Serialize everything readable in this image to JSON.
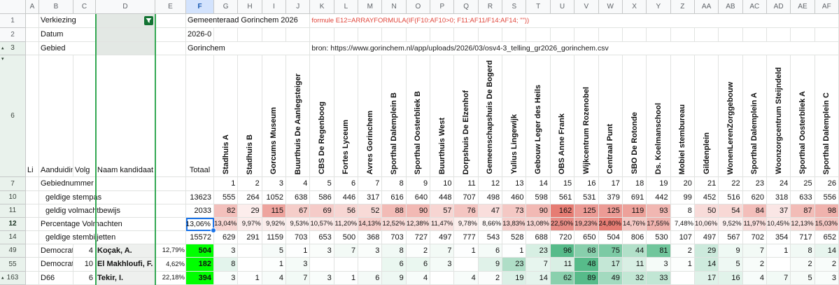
{
  "column_letters": [
    "A",
    "B",
    "C",
    "D",
    "E",
    "F",
    "G",
    "H",
    "I",
    "J",
    "K",
    "L",
    "M",
    "N",
    "O",
    "P",
    "Q",
    "R",
    "S",
    "T",
    "U",
    "V",
    "W",
    "X",
    "Y",
    "Z",
    "AA",
    "AB",
    "AC",
    "AD",
    "AE",
    "AF"
  ],
  "gutter_rows": [
    {
      "label": "1"
    },
    {
      "label": "2"
    },
    {
      "label": "3",
      "arrow": "up"
    },
    {
      "label": "6",
      "arrow": "down"
    },
    {
      "label": "7"
    },
    {
      "label": "10"
    },
    {
      "label": "11"
    },
    {
      "label": "12",
      "bold": true
    },
    {
      "label": "14"
    },
    {
      "label": "49"
    },
    {
      "label": "55"
    },
    {
      "label": "163",
      "arrow": "up"
    }
  ],
  "info": {
    "verkiezing_label": "Verkiezing",
    "election": "Gemeenteraad Gorinchem 2026",
    "formula_note": "formule E12=ARRAYFORMULA(IF(F10:AF10>0; F11:AF11/F14:AF14; \"\"))",
    "datum_label": "Datum",
    "datum_value": "2026-0",
    "gebied_label": "Gebied",
    "gebied_value": "Gorinchem",
    "source_note": "bron: https://www.gorinchem.nl/app/uploads/2026/03/osv4-3_telling_gr2026_gorinchem.csv"
  },
  "header_row": {
    "lijst": "Li",
    "aanduiding": "Aanduidin",
    "volgnummer": "Volg",
    "naam": "Naam kandidaat",
    "totaal": "Totaal"
  },
  "row_labels": {
    "gebiednummer": "Gebiednummer",
    "stempas": "geldige stempas",
    "volmacht": "geldig volmachtbewijs",
    "pct": "Percentage Volmachten",
    "stembiljetten": "geldige stembiljetten"
  },
  "totals": {
    "stempas": "13623",
    "volmacht": "2033",
    "pct": "13,06%",
    "stembiljetten": "15572"
  },
  "stations": [
    {
      "nr": 1,
      "name": "Stadhuis A",
      "stempas": 555,
      "volmacht": 82,
      "pct": "13,04%",
      "stembiljetten": 629
    },
    {
      "nr": 2,
      "name": "Stadhuis B",
      "stempas": 264,
      "volmacht": 29,
      "pct": "9,97%",
      "stembiljetten": 291
    },
    {
      "nr": 3,
      "name": "Gorcums Museum",
      "stempas": 1052,
      "volmacht": 115,
      "pct": "9,92%",
      "stembiljetten": 1159
    },
    {
      "nr": 4,
      "name": "Buurthuis De Aanlegsteiger",
      "stempas": 638,
      "volmacht": 67,
      "pct": "9,53%",
      "stembiljetten": 703
    },
    {
      "nr": 5,
      "name": "CBS De Regenboog",
      "stempas": 586,
      "volmacht": 69,
      "pct": "10,57%",
      "stembiljetten": 653
    },
    {
      "nr": 6,
      "name": "Fortes Lyceum",
      "stempas": 446,
      "volmacht": 56,
      "pct": "11,20%",
      "stembiljetten": 500
    },
    {
      "nr": 7,
      "name": "Avres Gorinchem",
      "stempas": 317,
      "volmacht": 52,
      "pct": "14,13%",
      "stembiljetten": 368
    },
    {
      "nr": 8,
      "name": "Sporthal Dalemplein B",
      "stempas": 616,
      "volmacht": 88,
      "pct": "12,52%",
      "stembiljetten": 703
    },
    {
      "nr": 9,
      "name": "Sporthal Oosterbliek B",
      "stempas": 640,
      "volmacht": 90,
      "pct": "12,38%",
      "stembiljetten": 727
    },
    {
      "nr": 10,
      "name": "Buurthuis West",
      "stempas": 448,
      "volmacht": 57,
      "pct": "11,47%",
      "stembiljetten": 497
    },
    {
      "nr": 11,
      "name": "Dorpshuis De Elzenhof",
      "stempas": 707,
      "volmacht": 76,
      "pct": "9,78%",
      "stembiljetten": 777
    },
    {
      "nr": 12,
      "name": "Gemeenschapshuis De Bogerd",
      "stempas": 498,
      "volmacht": 47,
      "pct": "8,66%",
      "stembiljetten": 543
    },
    {
      "nr": 13,
      "name": "Yulius Lingewijk",
      "stempas": 460,
      "volmacht": 73,
      "pct": "13,83%",
      "stembiljetten": 528
    },
    {
      "nr": 14,
      "name": "Gebouw Leger des Heils",
      "stempas": 598,
      "volmacht": 90,
      "pct": "13,08%",
      "stembiljetten": 688
    },
    {
      "nr": 15,
      "name": "OBS Anne Frank",
      "stempas": 561,
      "volmacht": 162,
      "pct": "22,50%",
      "stembiljetten": 720
    },
    {
      "nr": 16,
      "name": "Wijkcentrum Rozenobel",
      "stempas": 531,
      "volmacht": 125,
      "pct": "19,23%",
      "stembiljetten": 650
    },
    {
      "nr": 17,
      "name": "Centraal Punt",
      "stempas": 379,
      "volmacht": 125,
      "pct": "24,80%",
      "stembiljetten": 504
    },
    {
      "nr": 18,
      "name": "SBO De Rotonde",
      "stempas": 691,
      "volmacht": 119,
      "pct": "14,76%",
      "stembiljetten": 806
    },
    {
      "nr": 19,
      "name": "Ds. Koelmanschool",
      "stempas": 442,
      "volmacht": 93,
      "pct": "17,55%",
      "stembiljetten": 530
    },
    {
      "nr": 20,
      "name": "Mobiel stembureau",
      "stempas": 99,
      "volmacht": 8,
      "pct": "7,48%",
      "stembiljetten": 107
    },
    {
      "nr": 21,
      "name": "Gildenplein",
      "stempas": 452,
      "volmacht": 50,
      "pct": "10,06%",
      "stembiljetten": 497
    },
    {
      "nr": 22,
      "name": "WonenLerenZorggebouw",
      "stempas": 516,
      "volmacht": 54,
      "pct": "9,52%",
      "stembiljetten": 567
    },
    {
      "nr": 23,
      "name": "Sporthal Dalemplein A",
      "stempas": 620,
      "volmacht": 84,
      "pct": "11,97%",
      "stembiljetten": 702
    },
    {
      "nr": 24,
      "name": "Woonzorgcentrum Steijndeld",
      "stempas": 318,
      "volmacht": 37,
      "pct": "10,45%",
      "stembiljetten": 354
    },
    {
      "nr": 25,
      "name": "Sporthal Oosterbliek A",
      "stempas": 633,
      "volmacht": 87,
      "pct": "12,13%",
      "stembiljetten": 717
    },
    {
      "nr": 26,
      "name": "Sporthal Dalemplein C",
      "stempas": 556,
      "volmacht": 98,
      "pct": "15,03%",
      "stembiljetten": 652
    }
  ],
  "candidates": [
    {
      "row": "49",
      "party": "Democrate",
      "volg": "4",
      "name": "Koçak, A.",
      "pct": "12,79%",
      "total": "504",
      "votes": [
        3,
        null,
        5,
        1,
        3,
        7,
        3,
        8,
        2,
        7,
        1,
        6,
        1,
        23,
        96,
        68,
        75,
        44,
        81,
        2,
        29,
        9,
        7,
        1,
        8,
        14
      ]
    },
    {
      "row": "55",
      "party": "Democrate",
      "volg": "10",
      "name": "El Makhloufi, F.",
      "pct": "4,62%",
      "total": "182",
      "votes": [
        8,
        null,
        1,
        3,
        null,
        null,
        null,
        6,
        6,
        3,
        null,
        9,
        23,
        7,
        11,
        48,
        17,
        11,
        3,
        1,
        14,
        5,
        2,
        null,
        2,
        2
      ]
    },
    {
      "row": "163",
      "party": "D66",
      "volg": "6",
      "name": "Tekir, I.",
      "pct": "22,18%",
      "total": "394",
      "votes": [
        3,
        1,
        4,
        7,
        3,
        1,
        6,
        9,
        4,
        null,
        4,
        2,
        19,
        14,
        62,
        89,
        49,
        32,
        33,
        null,
        17,
        16,
        4,
        7,
        5,
        3
      ]
    }
  ],
  "colors": {
    "selection_blue": "#1a73e8",
    "filter_green": "#137333",
    "range_border_green": "#34a853",
    "cf_red_max": "#e67c73",
    "cf_green_max": "#57bb8a",
    "total_green": "#00ff00",
    "formula_red": "#e0453a",
    "selected_col_bg": "#d3e3fd",
    "cf_red_scale": {
      "count_min": 8,
      "count_max": 162,
      "pct_min": 7.48,
      "pct_max": 24.8
    }
  }
}
